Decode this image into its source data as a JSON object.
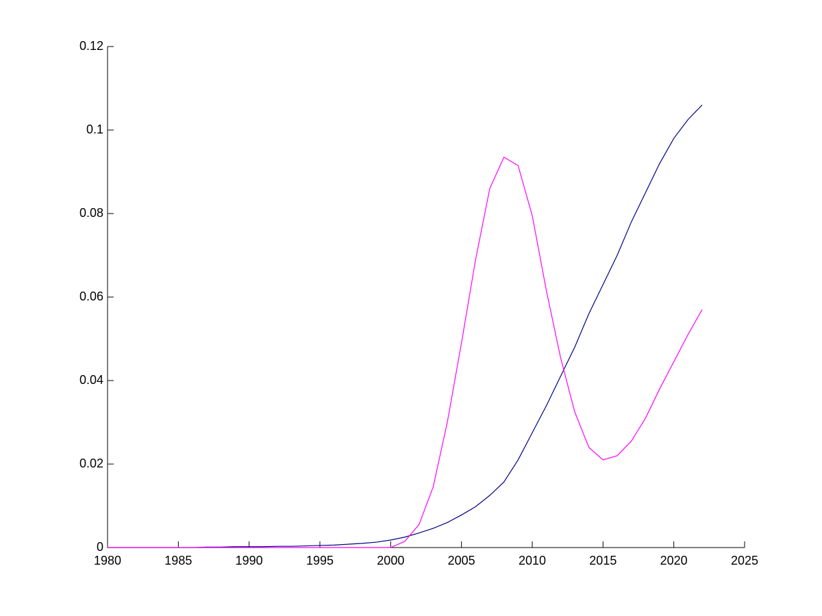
{
  "chart_data": {
    "type": "line",
    "x": [
      1980,
      1981,
      1982,
      1983,
      1984,
      1985,
      1986,
      1987,
      1988,
      1989,
      1990,
      1991,
      1992,
      1993,
      1994,
      1995,
      1996,
      1997,
      1998,
      1999,
      2000,
      2001,
      2002,
      2003,
      2004,
      2005,
      2006,
      2007,
      2008,
      2009,
      2010,
      2011,
      2012,
      2013,
      2014,
      2015,
      2016,
      2017,
      2018,
      2019,
      2020,
      2021,
      2022
    ],
    "series": [
      {
        "color": "#00007f",
        "values": [
          0,
          0,
          0,
          0,
          0,
          0,
          0,
          0.0001,
          0.0001,
          0.0002,
          0.0002,
          0.0002,
          0.0003,
          0.0003,
          0.0004,
          0.0005,
          0.0006,
          0.0008,
          0.001,
          0.0013,
          0.0018,
          0.0025,
          0.0035,
          0.0046,
          0.006,
          0.0078,
          0.0098,
          0.0125,
          0.0157,
          0.021,
          0.0275,
          0.034,
          0.041,
          0.048,
          0.056,
          0.063,
          0.07,
          0.078,
          0.085,
          0.092,
          0.098,
          0.1025,
          0.106
        ]
      },
      {
        "color": "#ff00ff",
        "values": [
          0,
          0,
          0,
          0,
          0,
          0,
          0,
          0,
          0,
          0,
          0,
          0,
          0,
          0,
          0,
          0,
          0,
          0,
          0,
          0,
          0,
          0.0015,
          0.0055,
          0.0145,
          0.03,
          0.049,
          0.069,
          0.086,
          0.0935,
          0.0915,
          0.0795,
          0.0615,
          0.0455,
          0.0325,
          0.024,
          0.021,
          0.022,
          0.0255,
          0.031,
          0.038,
          0.0445,
          0.051,
          0.057
        ]
      }
    ],
    "xlim": [
      1980,
      2025
    ],
    "xticks": [
      1980,
      1985,
      1990,
      1995,
      2000,
      2005,
      2010,
      2015,
      2020,
      2025
    ],
    "ylim": [
      0,
      0.12
    ],
    "yticks": [
      0,
      0.02,
      0.04,
      0.06,
      0.08,
      0.1,
      0.12
    ]
  }
}
